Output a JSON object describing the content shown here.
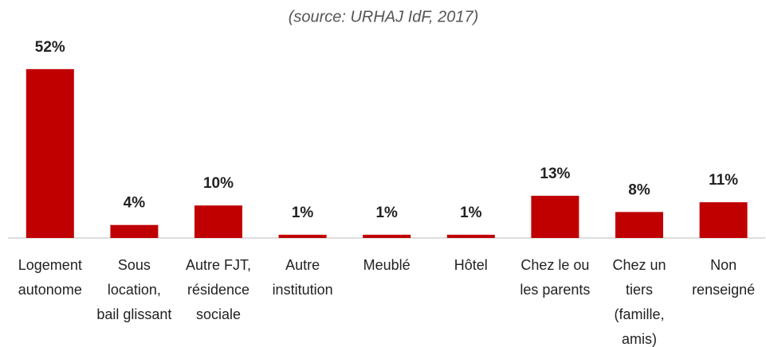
{
  "chart_data": {
    "type": "bar",
    "title": "(source: URHAJ IdF, 2017)",
    "categories": [
      "Logement autonome",
      "Sous location, bail glissant",
      "Autre FJT, résidence sociale",
      "Autre institution",
      "Meublé",
      "Hôtel",
      "Chez le ou les parents",
      "Chez un tiers (famille, amis)",
      "Non renseigné"
    ],
    "values": [
      52,
      4,
      10,
      1,
      1,
      1,
      13,
      8,
      11
    ],
    "value_labels": [
      "52%",
      "4%",
      "10%",
      "1%",
      "1%",
      "1%",
      "13%",
      "8%",
      "11%"
    ],
    "color": "#c00000"
  }
}
